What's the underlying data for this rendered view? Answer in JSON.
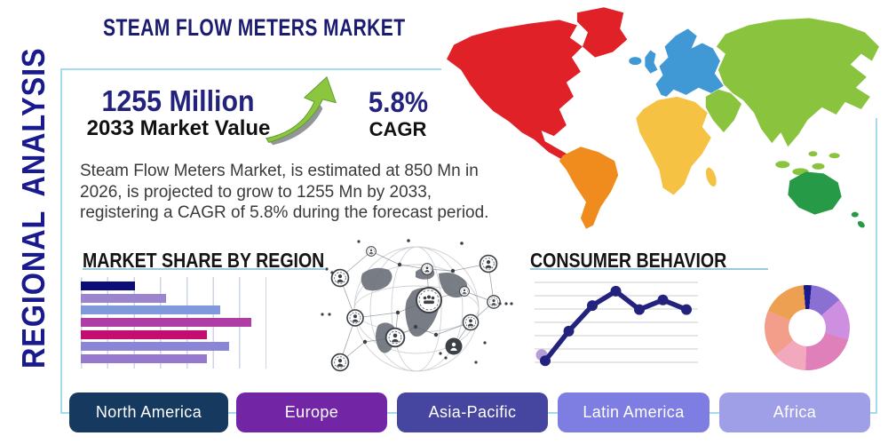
{
  "header": {
    "title": "STEAM FLOW METERS MARKET",
    "side_label": "REGIONAL ANALYSIS"
  },
  "stats": {
    "market_value": "1255 Million",
    "market_value_label": "2033 Market Value",
    "growth_arrow_icon": "up-right-green-arrow",
    "cagr_value": "5.8%",
    "cagr_label": "CAGR",
    "description": "Steam Flow Meters Market, is estimated at 850 Mn in 2026, is projected to grow to 1255 Mn by 2033, registering a CAGR of 5.8% during the forecast period."
  },
  "accent": {
    "frame_color": "#a5dbec",
    "underline_color": "#97cbdd"
  },
  "footer": {
    "buttons": [
      {
        "label": "North America",
        "color": "#16395f"
      },
      {
        "label": "Europe",
        "color": "#7226a6"
      },
      {
        "label": "Asia-Pacific",
        "color": "#4646a0"
      },
      {
        "label": "Latin America",
        "color": "#7d7de2"
      },
      {
        "label": "Africa",
        "color": "#9f9fe8"
      }
    ]
  },
  "chart_data": [
    {
      "type": "bar",
      "title": "MARKET SHARE BY REGION",
      "orientation": "horizontal",
      "categories": [
        "",
        "",
        "",
        "",
        "",
        "",
        ""
      ],
      "values": [
        29,
        46,
        75,
        92,
        68,
        80,
        68
      ],
      "xlim": [
        0,
        100
      ],
      "grid": true,
      "bar_colors": [
        "#0d0d77",
        "#9b85cf",
        "#8099dd",
        "#b03da5",
        "#c40d70",
        "#8a85d6",
        "#9678cf"
      ]
    },
    {
      "type": "line",
      "title": "CONSUMER BEHAVIOR",
      "x": [
        1,
        2,
        3,
        4,
        5,
        6,
        7
      ],
      "values": [
        2,
        39,
        71,
        89,
        66,
        78,
        66
      ],
      "ylim": [
        0,
        100
      ],
      "grid": "horizontal",
      "line_color": "#23237e",
      "start_point_color": "#b49dd8"
    },
    {
      "type": "pie",
      "donut": true,
      "start_angle_deg": -5,
      "segments": [
        {
          "value": 3,
          "color": "#1a1a8c"
        },
        {
          "value": 12,
          "color": "#8a70d2"
        },
        {
          "value": 16,
          "color": "#cf8fe0"
        },
        {
          "value": 21,
          "color": "#e080ba"
        },
        {
          "value": 13,
          "color": "#f2a8bd"
        },
        {
          "value": 18,
          "color": "#f29e8a"
        },
        {
          "value": 17,
          "color": "#eda052"
        }
      ]
    },
    {
      "type": "map",
      "regions": [
        {
          "name": "north-america",
          "color": "#e02128"
        },
        {
          "name": "greenland",
          "color": "#e02128"
        },
        {
          "name": "south-america",
          "color": "#f08c1e"
        },
        {
          "name": "iceland",
          "color": "#4099d4"
        },
        {
          "name": "uk",
          "color": "#4099d4"
        },
        {
          "name": "europe",
          "color": "#4099d4"
        },
        {
          "name": "africa",
          "color": "#f5c244"
        },
        {
          "name": "madagascar",
          "color": "#f5c244"
        },
        {
          "name": "middle-east",
          "color": "#8ac43f"
        },
        {
          "name": "asia",
          "color": "#8ac43f"
        },
        {
          "name": "japan",
          "color": "#8ac43f"
        },
        {
          "name": "se-asia-islands",
          "color": "#8ac43f"
        },
        {
          "name": "australia",
          "color": "#279a47"
        },
        {
          "name": "new-zealand",
          "color": "#279a47"
        }
      ]
    }
  ]
}
